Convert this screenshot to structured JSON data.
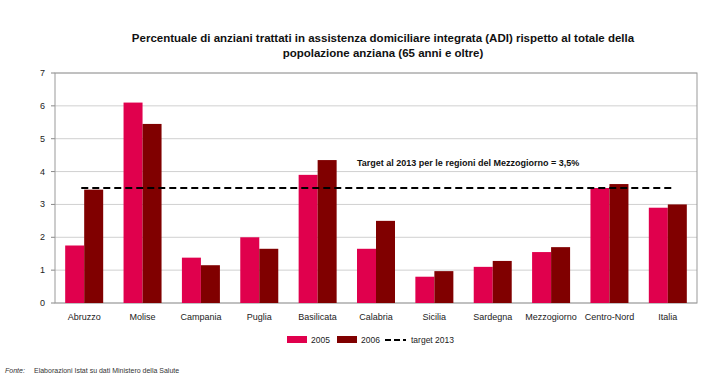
{
  "chart_data": {
    "type": "bar",
    "title": [
      "Percentuale di anziani trattati in assistenza domiciliare integrata (ADI) rispetto al totale della",
      "popolazione anziana (65 anni e oltre)"
    ],
    "categories": [
      "Abruzzo",
      "Molise",
      "Campania",
      "Puglia",
      "Basilicata",
      "Calabria",
      "Sicilia",
      "Sardegna",
      "Mezzogiorno",
      "Centro-Nord",
      "Italia"
    ],
    "series": [
      {
        "name": "2005",
        "color": "#e0004d",
        "values": [
          1.75,
          6.1,
          1.38,
          2.0,
          3.9,
          1.65,
          0.8,
          1.1,
          1.55,
          3.5,
          2.9
        ]
      },
      {
        "name": "2006",
        "color": "#800000",
        "values": [
          3.45,
          5.45,
          1.15,
          1.65,
          4.35,
          2.5,
          0.97,
          1.28,
          1.7,
          3.62,
          3.0
        ]
      }
    ],
    "reference_lines": [
      {
        "name": "target 2013",
        "value": 3.5,
        "label": "Target al 2013 per le regioni del Mezzogiorno = 3,5%",
        "line_style": "dashed",
        "color": "#000000"
      }
    ],
    "ylim": [
      0,
      7
    ],
    "yticks": [
      0,
      1,
      2,
      3,
      4,
      5,
      6,
      7
    ],
    "grid": true,
    "legend": "bottom",
    "source_label": "Fonte:",
    "source": "Elaborazioni Istat su dati Ministero della Salute"
  }
}
